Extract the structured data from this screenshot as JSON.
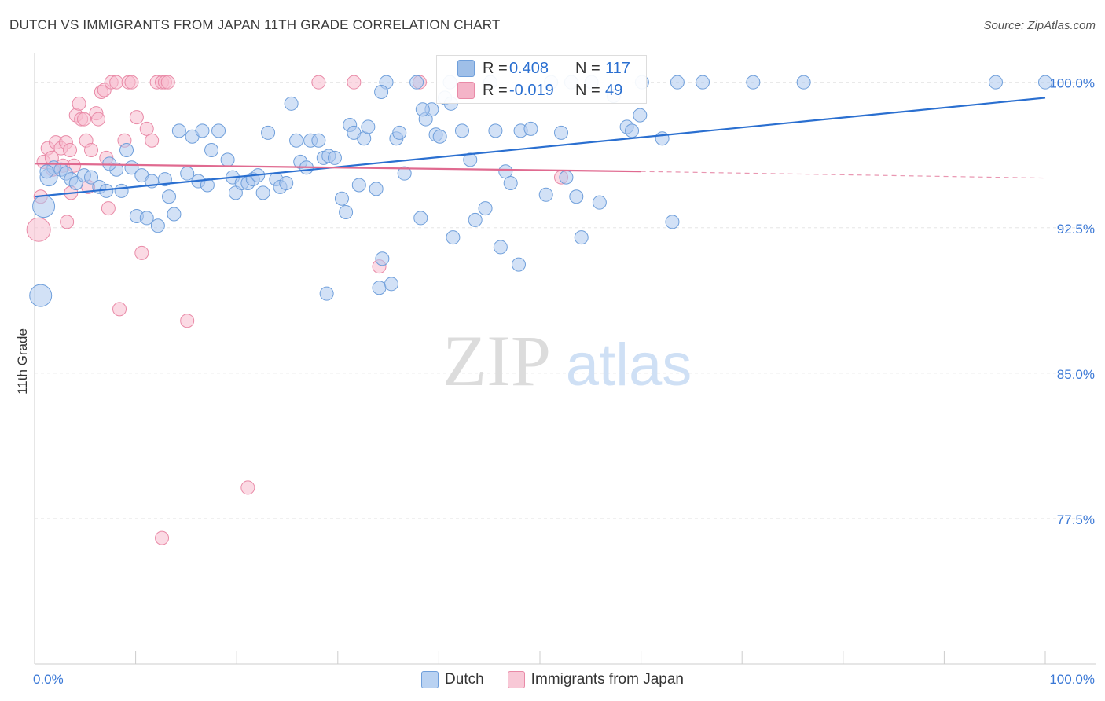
{
  "header": {
    "title": "DUTCH VS IMMIGRANTS FROM JAPAN 11TH GRADE CORRELATION CHART",
    "source": "Source: ZipAtlas.com"
  },
  "watermark": {
    "zip": "ZIP",
    "atlas": "atlas"
  },
  "stats": [
    {
      "r_label": "R =",
      "r_value": "0.408",
      "n_label": "N =",
      "n_value": "117",
      "color": "#9fbfe8"
    },
    {
      "r_label": "R =",
      "r_value": "-0.019",
      "n_label": "N =",
      "n_value": "49",
      "color": "#f4b4c8"
    }
  ],
  "legend": [
    {
      "label": "Dutch",
      "color": "#b9d2f2"
    },
    {
      "label": "Immigrants from Japan",
      "color": "#f8c8d6"
    }
  ],
  "colors": {
    "blue_fill": "#adc9ef",
    "blue_stroke": "#6f9fdb",
    "blue_line": "#2a6fd0",
    "pink_fill": "#f7bccd",
    "pink_stroke": "#e98aa7",
    "pink_line": "#e06a90",
    "tick_label": "#3a78d6",
    "grid": "#e6e6e6"
  },
  "chart_data": {
    "type": "scatter",
    "title": "DUTCH VS IMMIGRANTS FROM JAPAN 11TH GRADE CORRELATION CHART",
    "xlabel": "",
    "ylabel": "11th Grade",
    "xlim": [
      0,
      100
    ],
    "ylim": [
      70,
      101
    ],
    "x_tick_labels": [
      {
        "value": 0,
        "label": "0.0%"
      },
      {
        "value": 100,
        "label": "100.0%"
      }
    ],
    "y_ticks": [
      {
        "value": 100,
        "label": "100.0%"
      },
      {
        "value": 92.5,
        "label": "92.5%"
      },
      {
        "value": 85,
        "label": "85.0%"
      },
      {
        "value": 77.5,
        "label": "77.5%"
      }
    ],
    "x_minor_ticks": [
      10,
      20,
      30,
      40,
      50,
      60,
      70,
      80,
      90,
      100
    ],
    "series": [
      {
        "name": "Dutch",
        "r": 0.408,
        "n": 117,
        "trend": {
          "x0": 0,
          "y0": 94.1,
          "x1": 100,
          "y1": 99.2
        },
        "points": [
          [
            0.6,
            89
          ],
          [
            0.9,
            93.6
          ],
          [
            1.4,
            95.1
          ],
          [
            1.9,
            95.6
          ],
          [
            2.6,
            95.5
          ],
          [
            3.1,
            95.3
          ],
          [
            3.6,
            95
          ],
          [
            4.1,
            94.8
          ],
          [
            4.9,
            95.2
          ],
          [
            5.6,
            95.1
          ],
          [
            6.4,
            94.6
          ],
          [
            7.1,
            94.4
          ],
          [
            8.1,
            95.5
          ],
          [
            8.6,
            94.4
          ],
          [
            9.1,
            96.5
          ],
          [
            9.6,
            95.6
          ],
          [
            10.1,
            93.1
          ],
          [
            10.6,
            95.2
          ],
          [
            11.1,
            93
          ],
          [
            11.6,
            94.9
          ],
          [
            12.2,
            92.6
          ],
          [
            12.9,
            95
          ],
          [
            13.3,
            94.1
          ],
          [
            13.8,
            93.2
          ],
          [
            14.3,
            97.5
          ],
          [
            15.1,
            95.3
          ],
          [
            15.6,
            97.2
          ],
          [
            16.2,
            94.9
          ],
          [
            16.6,
            97.5
          ],
          [
            17.1,
            94.7
          ],
          [
            17.5,
            96.5
          ],
          [
            18.2,
            97.5
          ],
          [
            19.1,
            96
          ],
          [
            19.6,
            95.1
          ],
          [
            19.9,
            94.3
          ],
          [
            20.5,
            94.8
          ],
          [
            21.1,
            94.8
          ],
          [
            21.6,
            95
          ],
          [
            22.1,
            95.2
          ],
          [
            22.6,
            94.3
          ],
          [
            23.1,
            97.4
          ],
          [
            23.9,
            95
          ],
          [
            24.3,
            94.6
          ],
          [
            24.9,
            94.8
          ],
          [
            25.4,
            98.9
          ],
          [
            25.9,
            97
          ],
          [
            26.3,
            95.9
          ],
          [
            26.9,
            95.6
          ],
          [
            27.3,
            97
          ],
          [
            28.1,
            97
          ],
          [
            28.6,
            96.1
          ],
          [
            28.9,
            89.1
          ],
          [
            29.1,
            96.2
          ],
          [
            29.7,
            96.1
          ],
          [
            30.4,
            94
          ],
          [
            30.8,
            93.3
          ],
          [
            31.2,
            97.8
          ],
          [
            31.6,
            97.4
          ],
          [
            32.1,
            94.7
          ],
          [
            32.6,
            97.1
          ],
          [
            33,
            97.7
          ],
          [
            33.8,
            94.5
          ],
          [
            34.1,
            89.4
          ],
          [
            34.4,
            90.9
          ],
          [
            34.8,
            100
          ],
          [
            35.3,
            89.6
          ],
          [
            35.8,
            97.1
          ],
          [
            36.1,
            97.4
          ],
          [
            36.6,
            95.3
          ],
          [
            37.8,
            100
          ],
          [
            38.2,
            93
          ],
          [
            38.7,
            98.1
          ],
          [
            39.3,
            98.6
          ],
          [
            39.7,
            97.3
          ],
          [
            40.1,
            97.2
          ],
          [
            40.6,
            99.2
          ],
          [
            41.1,
            100
          ],
          [
            41.4,
            92
          ],
          [
            42.3,
            97.5
          ],
          [
            43.1,
            96
          ],
          [
            43.6,
            92.9
          ],
          [
            44.6,
            93.5
          ],
          [
            45.1,
            100
          ],
          [
            45.6,
            97.5
          ],
          [
            46.1,
            91.5
          ],
          [
            46.6,
            95.4
          ],
          [
            47.1,
            94.8
          ],
          [
            47.9,
            90.6
          ],
          [
            48.1,
            97.5
          ],
          [
            49.1,
            97.6
          ],
          [
            50.6,
            94.2
          ],
          [
            51.1,
            100
          ],
          [
            52.1,
            97.4
          ],
          [
            52.6,
            95.1
          ],
          [
            53.1,
            100
          ],
          [
            53.6,
            94.1
          ],
          [
            54.1,
            92
          ],
          [
            55.1,
            100
          ],
          [
            55.9,
            93.8
          ],
          [
            58.6,
            97.7
          ],
          [
            59.1,
            97.5
          ],
          [
            60.1,
            100
          ],
          [
            62.1,
            97.1
          ],
          [
            63.1,
            92.8
          ],
          [
            63.6,
            100
          ],
          [
            66.1,
            100
          ],
          [
            71.1,
            100
          ],
          [
            76.1,
            100
          ],
          [
            95.1,
            100
          ],
          [
            100,
            100
          ],
          [
            34.3,
            99.5
          ],
          [
            41.2,
            98.9
          ],
          [
            57.3,
            99.3
          ],
          [
            38.4,
            98.6
          ],
          [
            59.9,
            98.3
          ],
          [
            7.4,
            95.8
          ],
          [
            1.2,
            95.4
          ]
        ]
      },
      {
        "name": "Immigrants from Japan",
        "r": -0.019,
        "n": 49,
        "trend": {
          "x0": 0,
          "y0": 95.8,
          "x1": 60,
          "y1": 95.4,
          "dash_x1": 100,
          "dash_y1": 95.06
        },
        "points": [
          [
            0.4,
            92.4
          ],
          [
            0.6,
            94.1
          ],
          [
            0.9,
            95.9
          ],
          [
            1.3,
            96.6
          ],
          [
            1.7,
            96.1
          ],
          [
            2.1,
            96.9
          ],
          [
            2.6,
            96.6
          ],
          [
            2.8,
            95.7
          ],
          [
            3.1,
            96.9
          ],
          [
            3.2,
            92.8
          ],
          [
            3.5,
            96.5
          ],
          [
            3.6,
            94.3
          ],
          [
            3.9,
            95.7
          ],
          [
            4.1,
            98.3
          ],
          [
            4.4,
            98.9
          ],
          [
            4.6,
            98.1
          ],
          [
            4.9,
            98.1
          ],
          [
            5.1,
            97
          ],
          [
            5.3,
            94.6
          ],
          [
            5.6,
            96.5
          ],
          [
            6.1,
            98.4
          ],
          [
            6.3,
            98.1
          ],
          [
            6.6,
            99.5
          ],
          [
            6.9,
            99.6
          ],
          [
            7.1,
            96.1
          ],
          [
            7.3,
            93.5
          ],
          [
            7.6,
            100
          ],
          [
            8.1,
            100
          ],
          [
            8.4,
            88.3
          ],
          [
            8.9,
            97
          ],
          [
            9.3,
            100
          ],
          [
            9.6,
            100
          ],
          [
            10.1,
            98.2
          ],
          [
            10.6,
            91.2
          ],
          [
            11.1,
            97.6
          ],
          [
            11.6,
            97
          ],
          [
            12.1,
            100
          ],
          [
            12.6,
            100
          ],
          [
            12.9,
            100
          ],
          [
            13.2,
            100
          ],
          [
            12.6,
            76.5
          ],
          [
            15.1,
            87.7
          ],
          [
            21.1,
            79.1
          ],
          [
            28.1,
            100
          ],
          [
            31.6,
            100
          ],
          [
            34.1,
            90.5
          ],
          [
            38.1,
            100
          ],
          [
            52.1,
            95.1
          ],
          [
            1.8,
            95.5
          ]
        ]
      }
    ]
  }
}
